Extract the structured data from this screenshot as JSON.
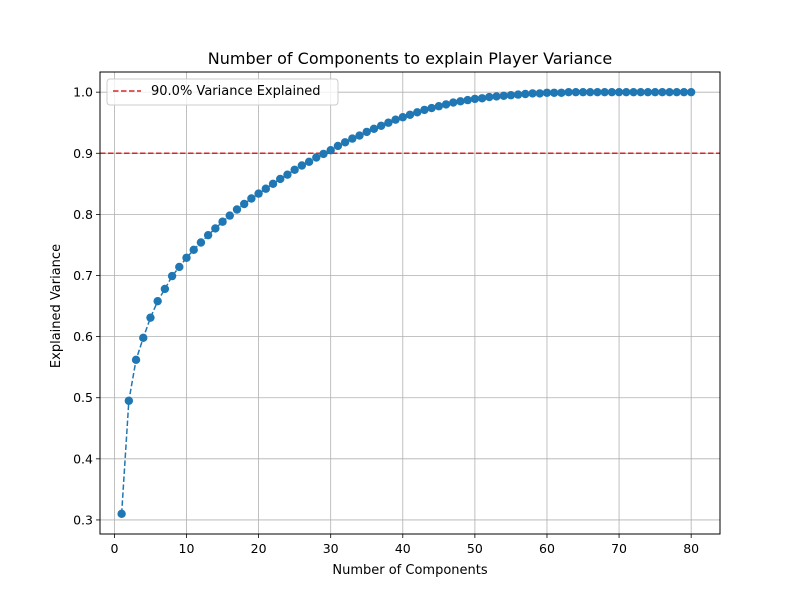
{
  "chart_data": {
    "type": "line",
    "title": "Number of Components to explain Player Variance",
    "xlabel": "Number of Components",
    "ylabel": "Explained Variance",
    "xlim": [
      -2,
      84
    ],
    "ylim": [
      0.277,
      1.033
    ],
    "xticks": [
      0,
      10,
      20,
      30,
      40,
      50,
      60,
      70,
      80
    ],
    "yticks": [
      0.3,
      0.4,
      0.5,
      0.6,
      0.7,
      0.8,
      0.9,
      1.0
    ],
    "xtick_labels": [
      "0",
      "10",
      "20",
      "30",
      "40",
      "50",
      "60",
      "70",
      "80"
    ],
    "ytick_labels": [
      "0.3",
      "0.4",
      "0.5",
      "0.6",
      "0.7",
      "0.8",
      "0.9",
      "1.0"
    ],
    "grid": true,
    "legend_position": "top-left",
    "series": [
      {
        "color": "#1f77b4",
        "linestyle": "dashed",
        "marker": "circle",
        "x": [
          1,
          2,
          3,
          4,
          5,
          6,
          7,
          8,
          9,
          10,
          11,
          12,
          13,
          14,
          15,
          16,
          17,
          18,
          19,
          20,
          21,
          22,
          23,
          24,
          25,
          26,
          27,
          28,
          29,
          30,
          31,
          32,
          33,
          34,
          35,
          36,
          37,
          38,
          39,
          40,
          41,
          42,
          43,
          44,
          45,
          46,
          47,
          48,
          49,
          50,
          51,
          52,
          53,
          54,
          55,
          56,
          57,
          58,
          59,
          60,
          61,
          62,
          63,
          64,
          65,
          66,
          67,
          68,
          69,
          70,
          71,
          72,
          73,
          74,
          75,
          76,
          77,
          78,
          79,
          80
        ],
        "y": [
          0.31,
          0.495,
          0.562,
          0.598,
          0.631,
          0.658,
          0.678,
          0.699,
          0.714,
          0.729,
          0.742,
          0.754,
          0.766,
          0.777,
          0.788,
          0.798,
          0.808,
          0.817,
          0.826,
          0.834,
          0.842,
          0.85,
          0.858,
          0.865,
          0.873,
          0.88,
          0.886,
          0.893,
          0.899,
          0.905,
          0.912,
          0.918,
          0.924,
          0.929,
          0.935,
          0.94,
          0.945,
          0.95,
          0.955,
          0.959,
          0.963,
          0.967,
          0.971,
          0.974,
          0.977,
          0.98,
          0.983,
          0.985,
          0.987,
          0.989,
          0.99,
          0.992,
          0.993,
          0.994,
          0.995,
          0.996,
          0.997,
          0.998,
          0.998,
          0.999,
          0.999,
          0.999,
          1.0,
          1.0,
          1.0,
          1.0,
          1.0,
          1.0,
          1.0,
          1.0,
          1.0,
          1.0,
          1.0,
          1.0,
          1.0,
          1.0,
          1.0,
          1.0,
          1.0,
          1.0
        ]
      }
    ],
    "reference_line": {
      "name": "90.0% Variance Explained",
      "orientation": "horizontal",
      "y": 0.9,
      "color": "#d62728",
      "linestyle": "dashed"
    }
  }
}
